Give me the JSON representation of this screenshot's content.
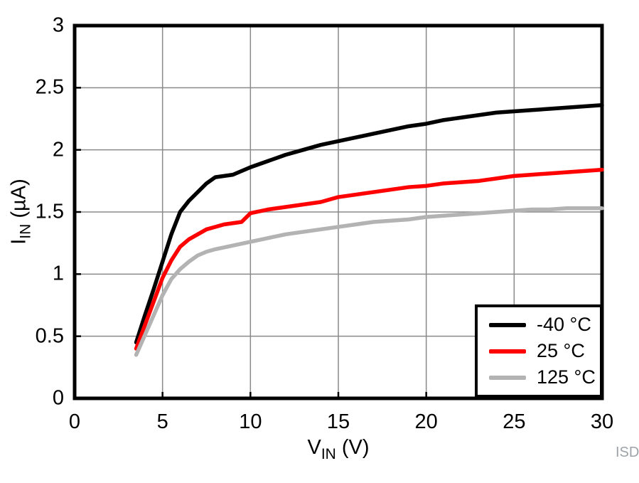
{
  "watermark": "ISD",
  "axes": {
    "x": {
      "pre": "V",
      "sub": "IN",
      "post": " (V)"
    },
    "y": {
      "pre": "I",
      "sub": "IN",
      "post": " (µA)"
    }
  },
  "legend": {
    "position": "bottom-right",
    "items": [
      {
        "label": "-40 °C",
        "color": "#000000"
      },
      {
        "label": "25 °C",
        "color": "#ff0000"
      },
      {
        "label": "125 °C",
        "color": "#b3b3b3"
      }
    ]
  },
  "chart_data": {
    "type": "line",
    "title": "",
    "xlabel": "VIN (V)",
    "ylabel": "IIN (µA)",
    "xlim": [
      0,
      30
    ],
    "ylim": [
      0,
      3
    ],
    "grid": true,
    "grid_color": "#8a8a8a",
    "frame_color": "#000000",
    "x_ticks": [
      0,
      5,
      10,
      15,
      20,
      25,
      30
    ],
    "x_tick_labels": [
      "0",
      "5",
      "10",
      "15",
      "20",
      "25",
      "30"
    ],
    "y_ticks": [
      0,
      0.5,
      1,
      1.5,
      2,
      2.5,
      3
    ],
    "y_tick_labels": [
      "0",
      "0.5",
      "1",
      "1.5",
      "2",
      "2.5",
      "3"
    ],
    "series": [
      {
        "name": "-40 °C",
        "color": "#000000",
        "points": [
          [
            3.5,
            0.45
          ],
          [
            4,
            0.67
          ],
          [
            4.5,
            0.88
          ],
          [
            5,
            1.1
          ],
          [
            5.5,
            1.32
          ],
          [
            6,
            1.5
          ],
          [
            6.5,
            1.59
          ],
          [
            7,
            1.66
          ],
          [
            7.5,
            1.73
          ],
          [
            8,
            1.78
          ],
          [
            8.5,
            1.79
          ],
          [
            9,
            1.8
          ],
          [
            9.5,
            1.83
          ],
          [
            10,
            1.86
          ],
          [
            11,
            1.91
          ],
          [
            12,
            1.96
          ],
          [
            13,
            2.0
          ],
          [
            14,
            2.04
          ],
          [
            15,
            2.07
          ],
          [
            16,
            2.1
          ],
          [
            17,
            2.13
          ],
          [
            18,
            2.16
          ],
          [
            19,
            2.19
          ],
          [
            20,
            2.21
          ],
          [
            21,
            2.24
          ],
          [
            22,
            2.26
          ],
          [
            23,
            2.28
          ],
          [
            24,
            2.3
          ],
          [
            25,
            2.31
          ],
          [
            26,
            2.32
          ],
          [
            27,
            2.33
          ],
          [
            28,
            2.34
          ],
          [
            29,
            2.35
          ],
          [
            30,
            2.36
          ]
        ]
      },
      {
        "name": "25 °C",
        "color": "#ff0000",
        "points": [
          [
            3.5,
            0.4
          ],
          [
            4,
            0.59
          ],
          [
            4.5,
            0.78
          ],
          [
            5,
            0.97
          ],
          [
            5.5,
            1.11
          ],
          [
            6,
            1.22
          ],
          [
            6.5,
            1.28
          ],
          [
            7,
            1.32
          ],
          [
            7.5,
            1.36
          ],
          [
            8,
            1.38
          ],
          [
            8.5,
            1.4
          ],
          [
            9,
            1.41
          ],
          [
            9.5,
            1.42
          ],
          [
            10,
            1.49
          ],
          [
            11,
            1.52
          ],
          [
            12,
            1.54
          ],
          [
            13,
            1.56
          ],
          [
            14,
            1.58
          ],
          [
            15,
            1.62
          ],
          [
            16,
            1.64
          ],
          [
            17,
            1.66
          ],
          [
            18,
            1.68
          ],
          [
            19,
            1.7
          ],
          [
            20,
            1.71
          ],
          [
            21,
            1.73
          ],
          [
            22,
            1.74
          ],
          [
            23,
            1.75
          ],
          [
            24,
            1.77
          ],
          [
            25,
            1.79
          ],
          [
            26,
            1.8
          ],
          [
            27,
            1.81
          ],
          [
            28,
            1.82
          ],
          [
            29,
            1.83
          ],
          [
            30,
            1.84
          ]
        ]
      },
      {
        "name": "125 °C",
        "color": "#b3b3b3",
        "points": [
          [
            3.5,
            0.35
          ],
          [
            4,
            0.51
          ],
          [
            4.5,
            0.67
          ],
          [
            5,
            0.83
          ],
          [
            5.5,
            0.96
          ],
          [
            6,
            1.04
          ],
          [
            6.5,
            1.1
          ],
          [
            7,
            1.15
          ],
          [
            7.5,
            1.18
          ],
          [
            8,
            1.2
          ],
          [
            9,
            1.23
          ],
          [
            10,
            1.26
          ],
          [
            11,
            1.29
          ],
          [
            12,
            1.32
          ],
          [
            13,
            1.34
          ],
          [
            14,
            1.36
          ],
          [
            15,
            1.38
          ],
          [
            16,
            1.4
          ],
          [
            17,
            1.42
          ],
          [
            18,
            1.43
          ],
          [
            19,
            1.44
          ],
          [
            20,
            1.46
          ],
          [
            21,
            1.47
          ],
          [
            22,
            1.48
          ],
          [
            23,
            1.49
          ],
          [
            24,
            1.5
          ],
          [
            25,
            1.51
          ],
          [
            26,
            1.52
          ],
          [
            27,
            1.52
          ],
          [
            28,
            1.53
          ],
          [
            29,
            1.53
          ],
          [
            30,
            1.53
          ]
        ]
      }
    ]
  }
}
